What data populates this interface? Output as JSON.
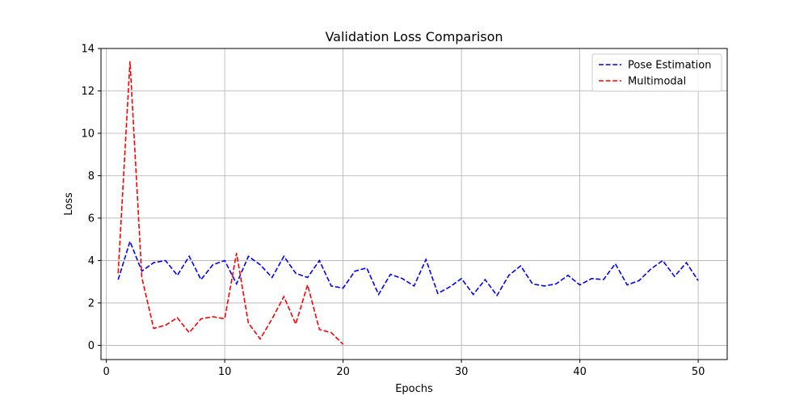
{
  "chart_data": {
    "type": "line",
    "title": "Validation Loss Comparison",
    "xlabel": "Epochs",
    "ylabel": "Loss",
    "xlim": [
      -0.45,
      52.45
    ],
    "ylim": [
      -0.67,
      14.0
    ],
    "xticks": [
      0,
      10,
      20,
      30,
      40,
      50
    ],
    "yticks": [
      0,
      2,
      4,
      6,
      8,
      10,
      12,
      14
    ],
    "grid": true,
    "legend_position": "top-right",
    "series": [
      {
        "name": "Pose Estimation",
        "color": "#0000ff",
        "linestyle": "dashed",
        "x": [
          1,
          2,
          3,
          4,
          5,
          6,
          7,
          8,
          9,
          10,
          11,
          12,
          13,
          14,
          15,
          16,
          17,
          18,
          19,
          20,
          21,
          22,
          23,
          24,
          25,
          26,
          27,
          28,
          29,
          30,
          31,
          32,
          33,
          34,
          35,
          36,
          37,
          38,
          39,
          40,
          41,
          42,
          43,
          44,
          45,
          46,
          47,
          48,
          49,
          50
        ],
        "values": [
          3.1,
          4.9,
          3.5,
          3.9,
          4.0,
          3.3,
          4.2,
          3.1,
          3.8,
          4.0,
          2.9,
          4.2,
          3.8,
          3.2,
          4.2,
          3.4,
          3.2,
          4.0,
          2.8,
          2.7,
          3.5,
          3.65,
          2.4,
          3.35,
          3.15,
          2.8,
          4.05,
          2.45,
          2.75,
          3.15,
          2.4,
          3.1,
          2.35,
          3.3,
          3.75,
          2.9,
          2.8,
          2.9,
          3.3,
          2.85,
          3.15,
          3.1,
          3.85,
          2.85,
          3.05,
          3.6,
          4.0,
          3.25,
          3.9,
          3.05
        ]
      },
      {
        "name": "Multimodal",
        "color": "#ff0000",
        "linestyle": "dashed",
        "x": [
          1,
          2,
          3,
          4,
          5,
          6,
          7,
          8,
          9,
          10,
          11,
          12,
          13,
          14,
          15,
          16,
          17,
          18,
          19,
          20
        ],
        "values": [
          3.4,
          13.4,
          3.2,
          0.8,
          0.95,
          1.3,
          0.6,
          1.25,
          1.35,
          1.25,
          4.35,
          1.05,
          0.3,
          1.25,
          2.3,
          1.0,
          2.85,
          0.75,
          0.6,
          0.05
        ]
      }
    ]
  }
}
